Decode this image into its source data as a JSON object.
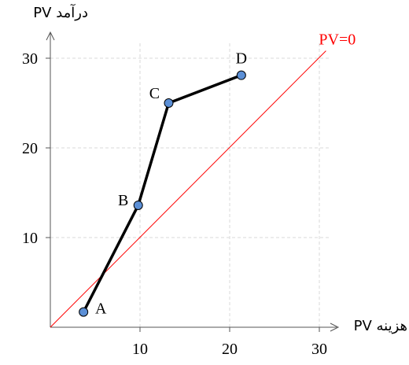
{
  "chart_data": {
    "type": "line",
    "title": "",
    "xlabel": "PV هزینه",
    "ylabel": "PV درآمد",
    "xlim": [
      0,
      31
    ],
    "ylim": [
      0,
      31
    ],
    "xticks": [
      10,
      20,
      30
    ],
    "yticks": [
      10,
      20,
      30
    ],
    "grid": true,
    "series": [
      {
        "values": [
          {
            "label": "A",
            "x": 3.7,
            "y": 1.7
          },
          {
            "label": "B",
            "x": 9.8,
            "y": 13.6
          },
          {
            "label": "C",
            "x": 13.2,
            "y": 25.0
          },
          {
            "label": "D",
            "x": 21.3,
            "y": 28.1
          }
        ],
        "color": "#000000",
        "marker_color": "#5b8fd6"
      }
    ],
    "reference_line": {
      "label": "PV=0",
      "from": [
        0,
        0
      ],
      "to": [
        31,
        31
      ],
      "color": "#ff0000"
    }
  }
}
